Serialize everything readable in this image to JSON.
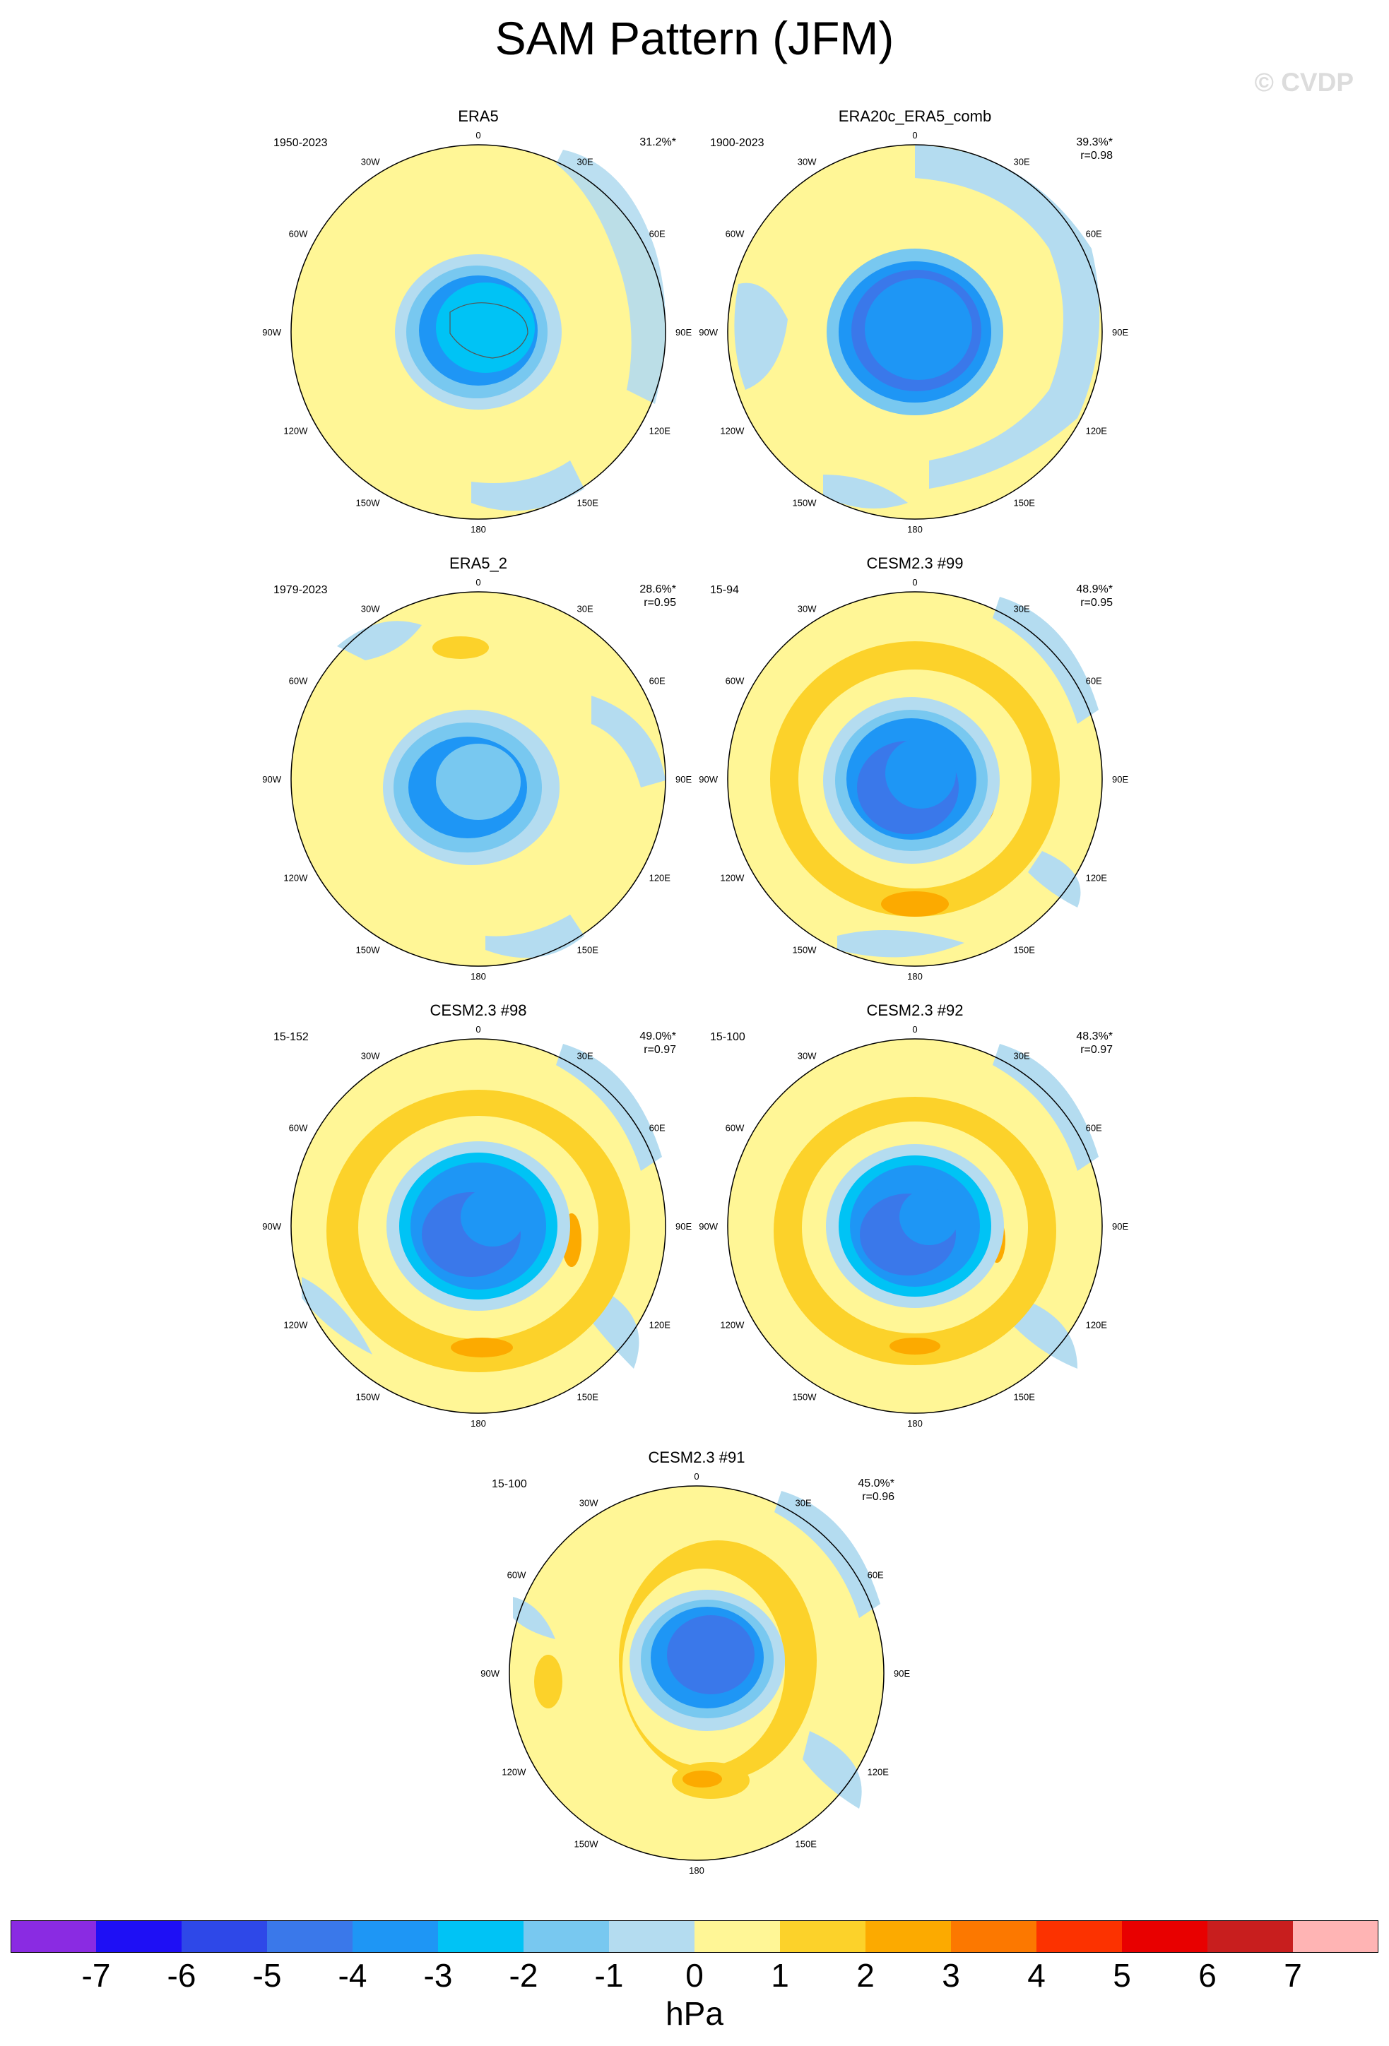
{
  "figure": {
    "title": "SAM Pattern (JFM)",
    "watermark": "© CVDP"
  },
  "lon_labels": [
    "0",
    "30E",
    "60E",
    "90E",
    "120E",
    "150E",
    "180",
    "150W",
    "120W",
    "90W",
    "60W",
    "30W"
  ],
  "panels": [
    {
      "name": "ERA5",
      "period": "1950-2023",
      "pct": "31.2%*",
      "r": ""
    },
    {
      "name": "ERA20c_ERA5_comb",
      "period": "1900-2023",
      "pct": "39.3%*",
      "r": "r=0.98"
    },
    {
      "name": "ERA5_2",
      "period": "1979-2023",
      "pct": "28.6%*",
      "r": "r=0.95"
    },
    {
      "name": "CESM2.3 #99",
      "period": "15-94",
      "pct": "48.9%*",
      "r": "r=0.95"
    },
    {
      "name": "CESM2.3 #98",
      "period": "15-152",
      "pct": "49.0%*",
      "r": "r=0.97"
    },
    {
      "name": "CESM2.3 #92",
      "period": "15-100",
      "pct": "48.3%*",
      "r": "r=0.97"
    },
    {
      "name": "CESM2.3 #91",
      "period": "15-100",
      "pct": "45.0%*",
      "r": "r=0.96"
    }
  ],
  "colorbar": {
    "unit": "hPa",
    "labels": [
      "-7",
      "-6",
      "-5",
      "-4",
      "-3",
      "-2",
      "-1",
      "0",
      "1",
      "2",
      "3",
      "4",
      "5",
      "6",
      "7"
    ],
    "colors": [
      "#8a2be2",
      "#1e0ff5",
      "#2e48e8",
      "#3a78ea",
      "#1e96f5",
      "#00c3f5",
      "#78c8f0",
      "#b4dcf0",
      "#fff696",
      "#fcd22a",
      "#fcaa00",
      "#fc7800",
      "#fc3200",
      "#e80000",
      "#c81e1e",
      "#ffb4b4"
    ]
  }
}
